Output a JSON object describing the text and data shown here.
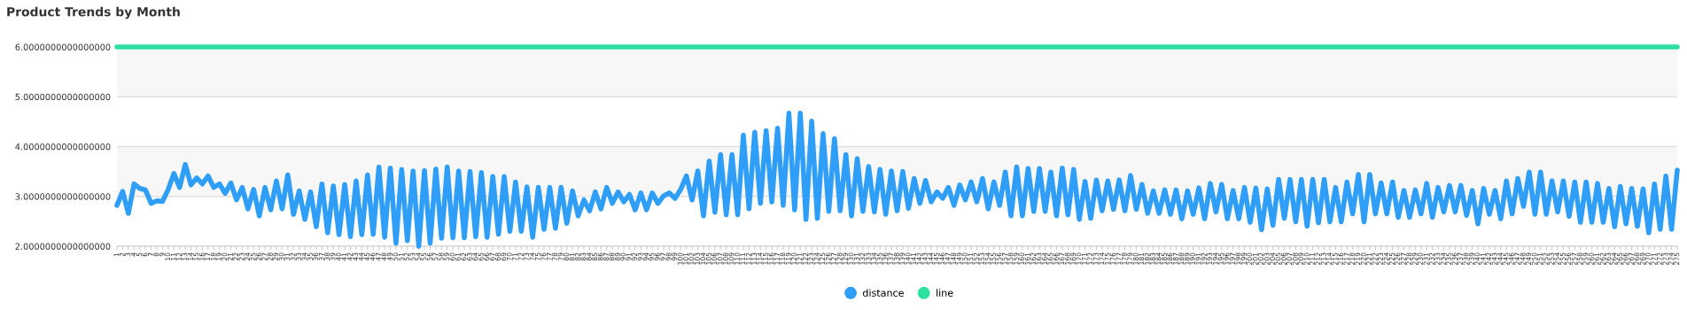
{
  "chart_data": {
    "type": "line",
    "title": "Product Trends by Month",
    "categories": [
      "1",
      "2",
      "3",
      "4",
      "5",
      "6",
      "7",
      "8",
      "9",
      "10",
      "11",
      "12",
      "13",
      "14",
      "15",
      "16",
      "17",
      "18",
      "19",
      "20",
      "21",
      "22",
      "23",
      "24",
      "25",
      "26",
      "27",
      "28",
      "29",
      "30",
      "31",
      "32",
      "33",
      "34",
      "35",
      "36",
      "37",
      "38",
      "39",
      "40",
      "41",
      "42",
      "43",
      "44",
      "45",
      "46",
      "47",
      "48",
      "49",
      "50",
      "51",
      "52",
      "53",
      "54",
      "55",
      "56",
      "57",
      "58",
      "59",
      "60",
      "61",
      "62",
      "63",
      "64",
      "65",
      "66",
      "67",
      "68",
      "69",
      "70",
      "71",
      "72",
      "73",
      "74",
      "75",
      "76",
      "77",
      "78",
      "79",
      "80",
      "81",
      "82",
      "83",
      "84",
      "85",
      "86",
      "87",
      "88",
      "89",
      "90",
      "91",
      "92",
      "93",
      "94",
      "95",
      "96",
      "97",
      "98",
      "99",
      "100",
      "101",
      "102",
      "103",
      "104",
      "105",
      "106",
      "107",
      "108",
      "109",
      "110",
      "111",
      "112",
      "113",
      "114",
      "115",
      "116",
      "117",
      "118",
      "119",
      "120",
      "121",
      "122",
      "123",
      "124",
      "125",
      "126",
      "127",
      "128",
      "129",
      "130",
      "131",
      "132",
      "133",
      "134",
      "135",
      "136",
      "137",
      "138",
      "139",
      "140",
      "141",
      "142",
      "143",
      "144",
      "145",
      "146",
      "147",
      "148",
      "149",
      "150",
      "151",
      "152",
      "153",
      "154",
      "155",
      "156",
      "157",
      "158",
      "159",
      "160",
      "161",
      "162",
      "163",
      "164",
      "165",
      "166",
      "167",
      "168",
      "169",
      "170",
      "171",
      "172",
      "173",
      "174",
      "175",
      "176",
      "177",
      "178",
      "179",
      "180",
      "181",
      "182",
      "183",
      "184",
      "185",
      "186",
      "187",
      "188",
      "189",
      "190",
      "191",
      "192",
      "193",
      "194",
      "195",
      "196",
      "197",
      "198",
      "199",
      "200",
      "201",
      "202",
      "203",
      "204",
      "205",
      "206",
      "207",
      "208",
      "209",
      "210",
      "211",
      "212",
      "213",
      "214",
      "215",
      "216",
      "217",
      "218",
      "219",
      "220",
      "221",
      "222",
      "223",
      "224",
      "225",
      "226",
      "227",
      "228",
      "229",
      "230",
      "231",
      "232",
      "233",
      "234",
      "235",
      "236",
      "237",
      "238",
      "239",
      "240",
      "241",
      "242",
      "243",
      "244",
      "245",
      "246",
      "247",
      "248",
      "249",
      "250",
      "251",
      "252",
      "253",
      "254",
      "255",
      "256",
      "257",
      "258",
      "259",
      "260",
      "261",
      "262",
      "263",
      "264",
      "265",
      "266",
      "267",
      "268",
      "269",
      "270",
      "271",
      "272",
      "273",
      "274",
      "275"
    ],
    "series": [
      {
        "name": "distance",
        "color": "#2f9ef8",
        "values": [
          2.82,
          3.1,
          2.66,
          3.25,
          3.16,
          3.13,
          2.86,
          2.91,
          2.9,
          3.14,
          3.46,
          3.18,
          3.64,
          3.23,
          3.37,
          3.25,
          3.41,
          3.18,
          3.25,
          3.06,
          3.27,
          2.93,
          3.18,
          2.75,
          3.14,
          2.61,
          3.18,
          2.73,
          3.31,
          2.75,
          3.43,
          2.64,
          3.11,
          2.54,
          3.09,
          2.39,
          3.25,
          2.27,
          3.21,
          2.23,
          3.24,
          2.19,
          3.31,
          2.23,
          3.43,
          2.24,
          3.59,
          2.18,
          3.57,
          2.06,
          3.54,
          2.11,
          3.51,
          2.0,
          3.52,
          2.06,
          3.55,
          2.16,
          3.59,
          2.17,
          3.51,
          2.17,
          3.5,
          2.19,
          3.48,
          2.18,
          3.4,
          2.24,
          3.4,
          2.3,
          3.29,
          2.3,
          3.19,
          2.18,
          3.18,
          2.34,
          3.18,
          2.36,
          3.18,
          2.46,
          3.11,
          2.61,
          2.93,
          2.71,
          3.09,
          2.75,
          3.18,
          2.86,
          3.09,
          2.89,
          3.04,
          2.73,
          3.07,
          2.73,
          3.07,
          2.86,
          3.01,
          3.07,
          2.96,
          3.14,
          3.41,
          2.93,
          3.51,
          2.61,
          3.71,
          2.68,
          3.84,
          2.63,
          3.84,
          2.63,
          4.23,
          2.75,
          4.29,
          2.86,
          4.32,
          2.89,
          4.37,
          2.82,
          4.67,
          2.73,
          4.67,
          2.54,
          4.51,
          2.56,
          4.26,
          2.7,
          4.16,
          2.71,
          3.84,
          2.61,
          3.76,
          2.7,
          3.6,
          2.69,
          3.54,
          2.64,
          3.51,
          2.71,
          3.5,
          2.76,
          3.36,
          2.86,
          3.32,
          2.89,
          3.09,
          2.96,
          3.18,
          2.82,
          3.23,
          2.93,
          3.29,
          2.89,
          3.36,
          2.75,
          3.29,
          2.82,
          3.49,
          2.61,
          3.59,
          2.61,
          3.56,
          2.7,
          3.56,
          2.7,
          3.49,
          2.61,
          3.57,
          2.63,
          3.54,
          2.54,
          3.3,
          2.56,
          3.33,
          2.71,
          3.31,
          2.74,
          3.33,
          2.71,
          3.42,
          2.74,
          3.24,
          2.66,
          3.11,
          2.66,
          3.13,
          2.64,
          3.13,
          2.55,
          3.11,
          2.64,
          3.17,
          2.55,
          3.26,
          2.69,
          3.24,
          2.55,
          3.12,
          2.55,
          3.18,
          2.48,
          3.17,
          2.33,
          3.15,
          2.42,
          3.34,
          2.56,
          3.34,
          2.49,
          3.34,
          2.4,
          3.34,
          2.47,
          3.34,
          2.49,
          3.18,
          2.49,
          3.29,
          2.65,
          3.44,
          2.49,
          3.44,
          2.65,
          3.27,
          2.65,
          3.29,
          2.58,
          3.12,
          2.58,
          3.13,
          2.65,
          3.26,
          2.58,
          3.18,
          2.69,
          3.22,
          2.69,
          3.22,
          2.62,
          3.12,
          2.45,
          3.16,
          2.64,
          3.12,
          2.55,
          3.31,
          2.65,
          3.36,
          2.8,
          3.49,
          2.64,
          3.49,
          2.64,
          3.31,
          2.69,
          3.31,
          2.6,
          3.29,
          2.48,
          3.29,
          2.48,
          3.26,
          2.48,
          3.16,
          2.39,
          3.2,
          2.45,
          3.16,
          2.4,
          3.15,
          2.27,
          3.25,
          2.34,
          3.41,
          2.34,
          3.53
        ]
      },
      {
        "name": "line",
        "color": "#2de0a0",
        "values": [
          6,
          6,
          6,
          6,
          6,
          6,
          6,
          6,
          6,
          6,
          6,
          6,
          6,
          6,
          6,
          6,
          6,
          6,
          6,
          6,
          6,
          6,
          6,
          6,
          6,
          6,
          6,
          6,
          6,
          6,
          6,
          6,
          6,
          6,
          6,
          6,
          6,
          6,
          6,
          6,
          6,
          6,
          6,
          6,
          6,
          6,
          6,
          6,
          6,
          6,
          6,
          6,
          6,
          6,
          6,
          6,
          6,
          6,
          6,
          6,
          6,
          6,
          6,
          6,
          6,
          6,
          6,
          6,
          6,
          6,
          6,
          6,
          6,
          6,
          6,
          6,
          6,
          6,
          6,
          6,
          6,
          6,
          6,
          6,
          6,
          6,
          6,
          6,
          6,
          6,
          6,
          6,
          6,
          6,
          6,
          6,
          6,
          6,
          6,
          6,
          6,
          6,
          6,
          6,
          6,
          6,
          6,
          6,
          6,
          6,
          6,
          6,
          6,
          6,
          6,
          6,
          6,
          6,
          6,
          6,
          6,
          6,
          6,
          6,
          6,
          6,
          6,
          6,
          6,
          6,
          6,
          6,
          6,
          6,
          6,
          6,
          6,
          6,
          6,
          6,
          6,
          6,
          6,
          6,
          6,
          6,
          6,
          6,
          6,
          6,
          6,
          6,
          6,
          6,
          6,
          6,
          6,
          6,
          6,
          6,
          6,
          6,
          6,
          6,
          6,
          6,
          6,
          6,
          6,
          6,
          6,
          6,
          6,
          6,
          6,
          6,
          6,
          6,
          6,
          6,
          6,
          6,
          6,
          6,
          6,
          6,
          6,
          6,
          6,
          6,
          6,
          6,
          6,
          6,
          6,
          6,
          6,
          6,
          6,
          6,
          6,
          6,
          6,
          6,
          6,
          6,
          6,
          6,
          6,
          6,
          6,
          6,
          6,
          6,
          6,
          6,
          6,
          6,
          6,
          6,
          6,
          6,
          6,
          6,
          6,
          6,
          6,
          6,
          6,
          6,
          6,
          6,
          6,
          6,
          6,
          6,
          6,
          6,
          6,
          6,
          6,
          6,
          6,
          6,
          6,
          6,
          6,
          6,
          6,
          6,
          6,
          6,
          6,
          6,
          6,
          6,
          6,
          6,
          6,
          6,
          6,
          6,
          6,
          6,
          6,
          6,
          6,
          6,
          6,
          6,
          6,
          6,
          6,
          6,
          6
        ]
      }
    ],
    "ylim": [
      2,
      6
    ],
    "yticks": [
      {
        "value": 2,
        "label": "2.0000000000000000"
      },
      {
        "value": 3,
        "label": "3.0000000000000000"
      },
      {
        "value": 4,
        "label": "4.0000000000000000"
      },
      {
        "value": 5,
        "label": "5.0000000000000000"
      },
      {
        "value": 6,
        "label": "6.0000000000000000"
      }
    ],
    "grid": "y",
    "legend": "bottom",
    "marker": "none",
    "line_style": "solid"
  }
}
